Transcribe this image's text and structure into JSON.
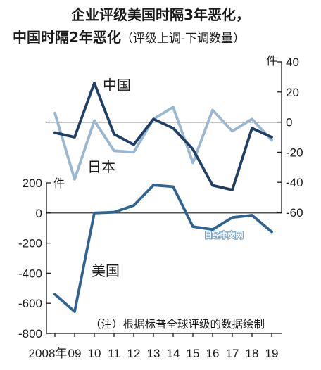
{
  "title_line1": "企业评级美国时隔3年恶化，",
  "title_line2_main": "中国时隔2年恶化",
  "title_line2_sub": "（评级上调-下调数量）",
  "note": "（注）根据标普全球评级的数据绘制",
  "watermark": "日经中文网",
  "chart_data": [
    {
      "type": "line",
      "x": [
        "2008年",
        "09",
        "10",
        "11",
        "12",
        "13",
        "14",
        "15",
        "16",
        "17",
        "18",
        "19"
      ],
      "unit": "件",
      "yaxis_position": "right",
      "ylim": [
        -60,
        40
      ],
      "yticks": [
        40,
        20,
        0,
        -20,
        -40,
        -60
      ],
      "series": [
        {
          "name": "中国",
          "color": "#1f3f66",
          "values": [
            -7,
            -10,
            26,
            -8,
            -15,
            2,
            -4,
            -18,
            -42,
            -45,
            -4,
            -10
          ]
        },
        {
          "name": "日本",
          "color": "#9ab7d1",
          "values": [
            6,
            -38,
            1,
            -19,
            -20,
            2,
            10,
            -27,
            8,
            -6,
            2,
            -12
          ]
        }
      ]
    },
    {
      "type": "line",
      "x": [
        "2008年",
        "09",
        "10",
        "11",
        "12",
        "13",
        "14",
        "15",
        "16",
        "17",
        "18",
        "19"
      ],
      "unit": "件",
      "yaxis_position": "left",
      "ylim": [
        -800,
        200
      ],
      "yticks": [
        200,
        0,
        -200,
        -400,
        -600,
        -800
      ],
      "series": [
        {
          "name": "美国",
          "color": "#2e6393",
          "values": [
            -540,
            -655,
            0,
            5,
            50,
            185,
            175,
            -90,
            -110,
            -30,
            -15,
            -125
          ]
        }
      ]
    }
  ]
}
